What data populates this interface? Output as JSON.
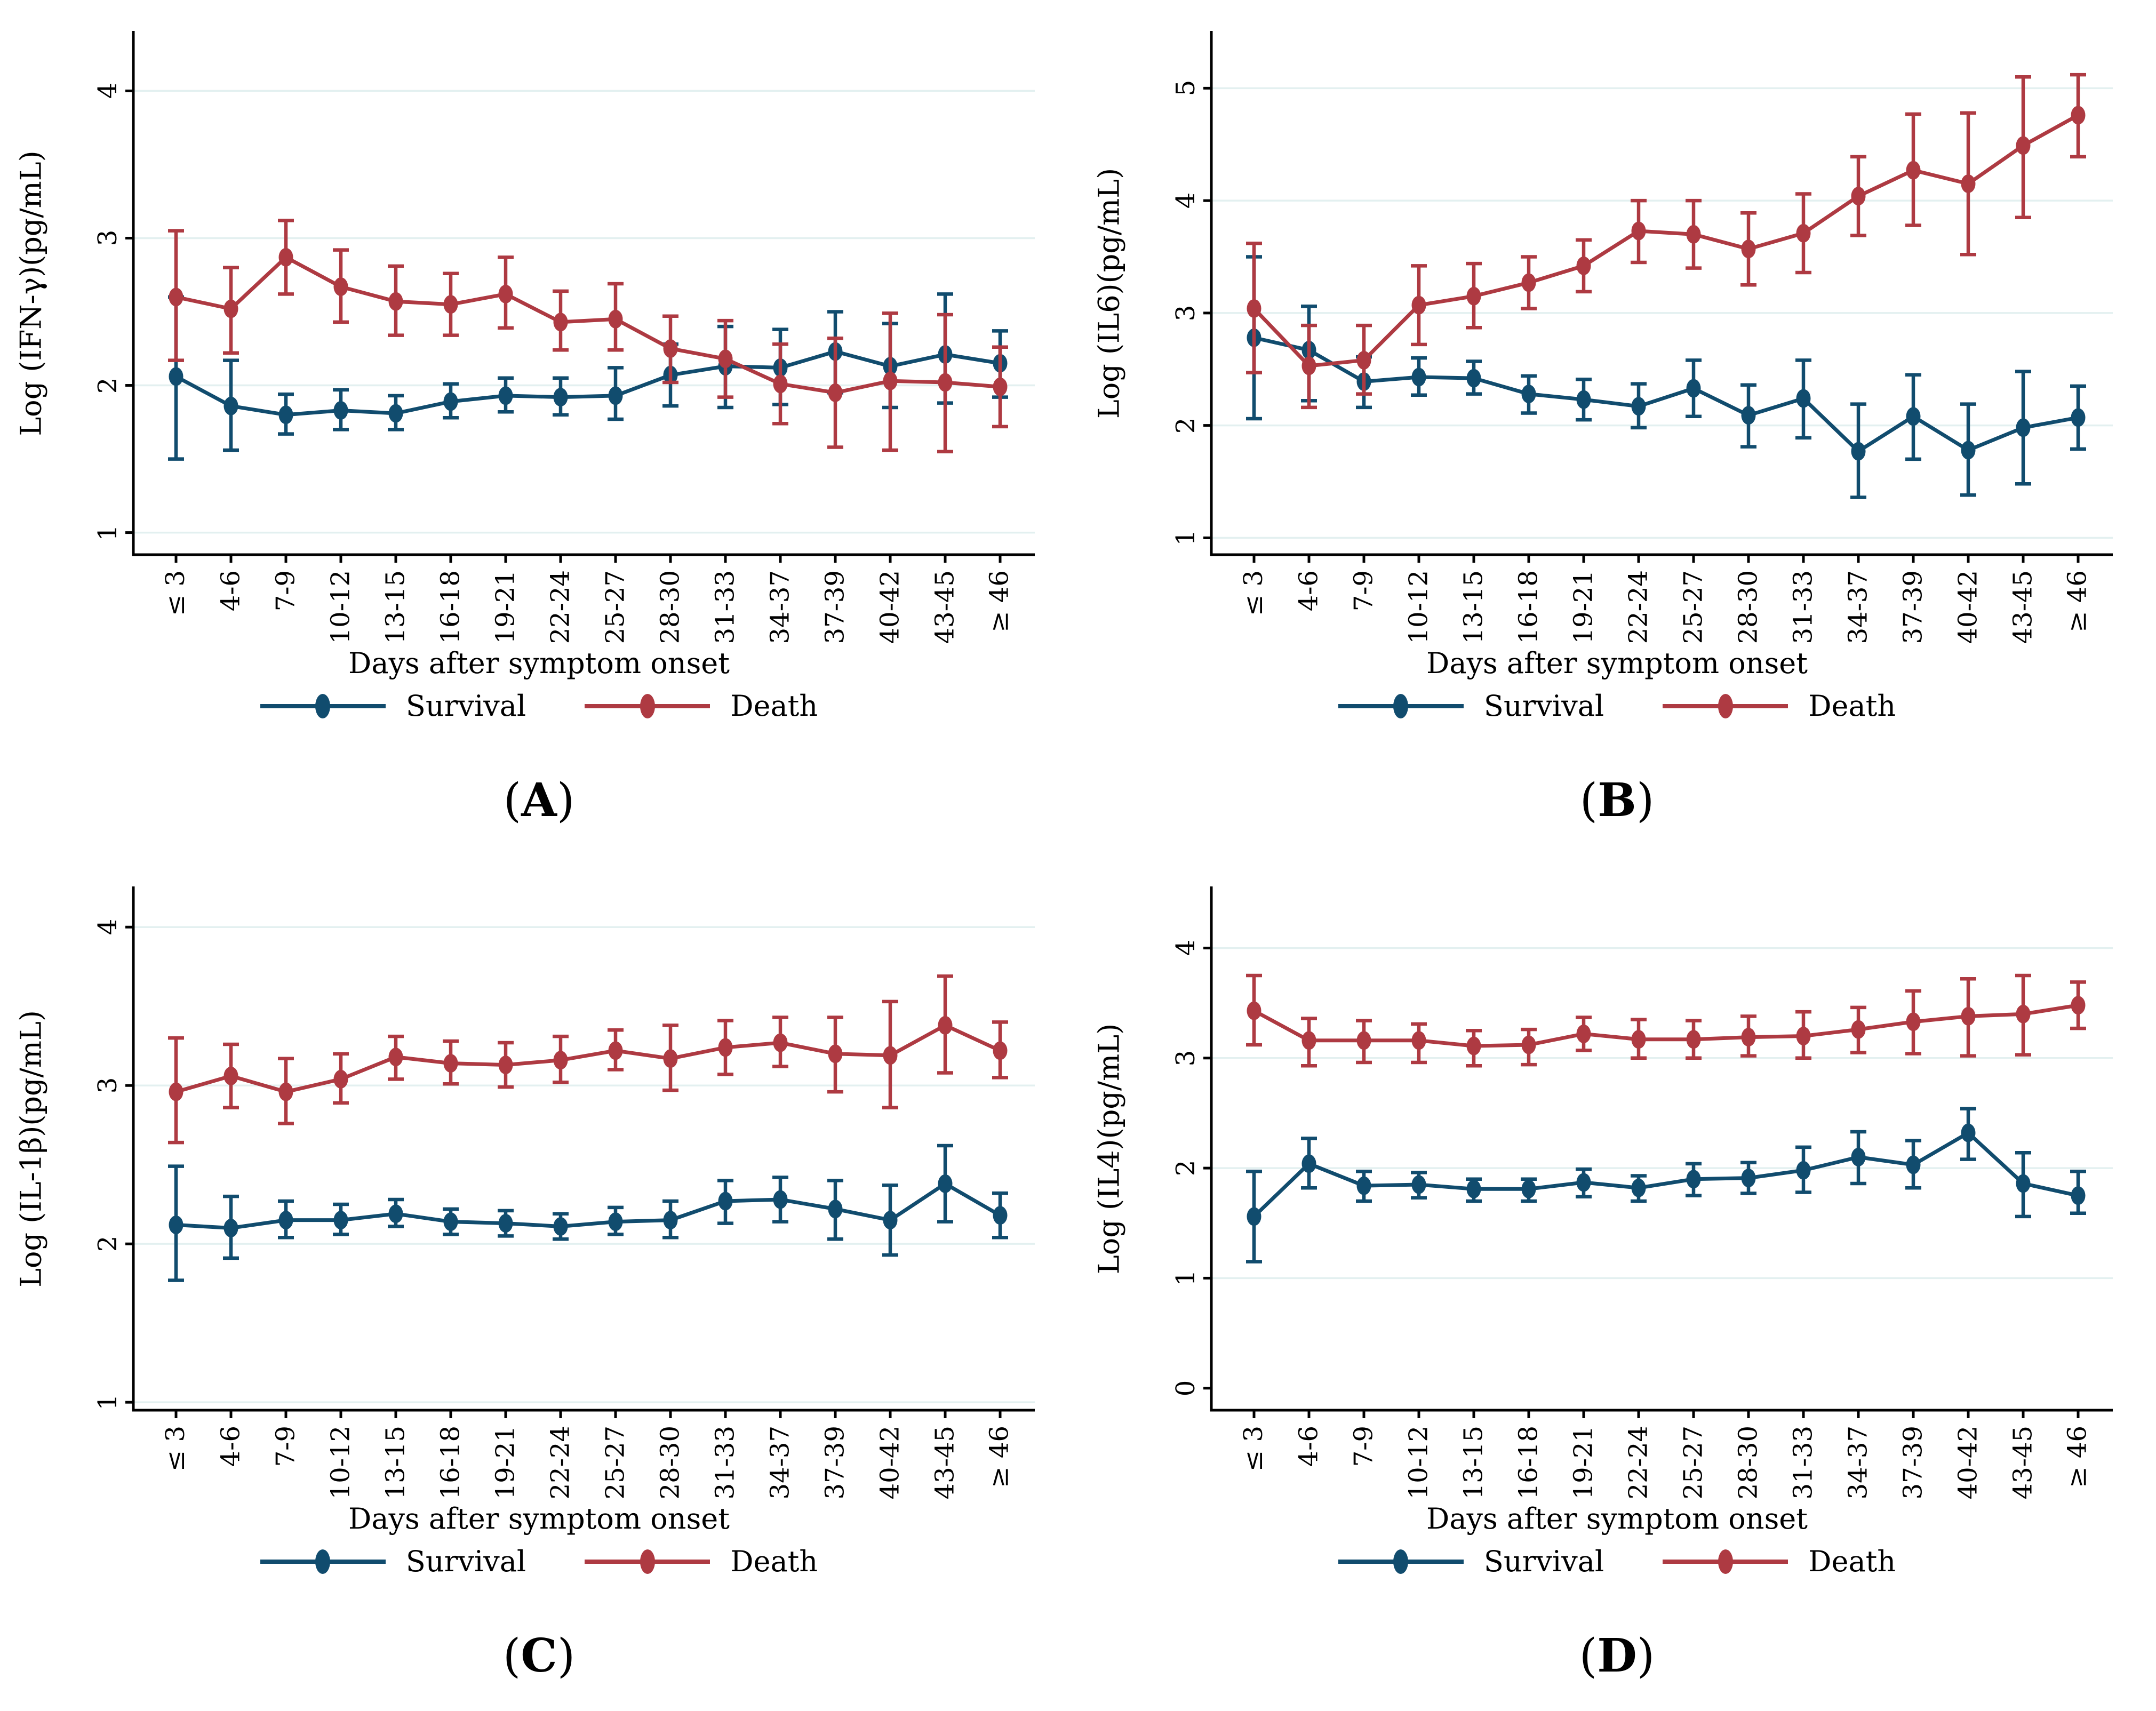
{
  "figure": {
    "x_title": "Days after symptom onset",
    "categories": [
      "≤ 3",
      "4-6",
      "7-9",
      "10-12",
      "13-15",
      "16-18",
      "19-21",
      "22-24",
      "25-27",
      "28-30",
      "31-33",
      "34-37",
      "37-39",
      "40-42",
      "43-45",
      "≥ 46"
    ],
    "legend": [
      {
        "label": "Survival",
        "color": "#114c6e"
      },
      {
        "label": "Death",
        "color": "#ae3a42"
      }
    ],
    "colors": {
      "survival": "#114c6e",
      "death": "#ae3a42",
      "gridline": "#e3f0f0",
      "axis": "#000000",
      "background": "#ffffff"
    }
  },
  "chart_data": [
    {
      "panel": "A",
      "caption": "(A)",
      "letter": "A",
      "type": "line",
      "xlabel": "Days after symptom onset",
      "ylabel": "Log (IFN-γ)(pg/mL)",
      "ylim": [
        0.85,
        4.4
      ],
      "yticks": [
        1,
        2,
        3,
        4
      ],
      "grid_ticks": [
        1,
        2,
        3,
        4
      ],
      "legend_position": "bottom",
      "categories": [
        "≤ 3",
        "4-6",
        "7-9",
        "10-12",
        "13-15",
        "16-18",
        "19-21",
        "22-24",
        "25-27",
        "28-30",
        "31-33",
        "34-37",
        "37-39",
        "40-42",
        "43-45",
        "≥ 46"
      ],
      "series": [
        {
          "name": "Survival",
          "color": "#114c6e",
          "values": [
            2.06,
            1.86,
            1.8,
            1.83,
            1.81,
            1.89,
            1.93,
            1.92,
            1.93,
            2.07,
            2.13,
            2.12,
            2.23,
            2.13,
            2.21,
            2.15
          ],
          "ci_low": [
            1.5,
            1.56,
            1.67,
            1.7,
            1.7,
            1.78,
            1.82,
            1.8,
            1.77,
            1.86,
            1.85,
            1.87,
            1.95,
            1.85,
            1.88,
            1.92
          ],
          "ci_high": [
            2.6,
            2.17,
            1.94,
            1.97,
            1.93,
            2.01,
            2.05,
            2.05,
            2.12,
            2.28,
            2.4,
            2.38,
            2.5,
            2.42,
            2.62,
            2.37
          ]
        },
        {
          "name": "Death",
          "color": "#ae3a42",
          "values": [
            2.6,
            2.52,
            2.87,
            2.67,
            2.57,
            2.55,
            2.62,
            2.43,
            2.45,
            2.25,
            2.18,
            2.01,
            1.95,
            2.03,
            2.02,
            1.99
          ],
          "ci_low": [
            2.17,
            2.22,
            2.62,
            2.43,
            2.34,
            2.34,
            2.39,
            2.24,
            2.24,
            2.02,
            1.92,
            1.74,
            1.58,
            1.56,
            1.55,
            1.72
          ],
          "ci_high": [
            3.05,
            2.8,
            3.12,
            2.92,
            2.81,
            2.76,
            2.87,
            2.64,
            2.69,
            2.47,
            2.44,
            2.28,
            2.32,
            2.49,
            2.48,
            2.26
          ]
        }
      ]
    },
    {
      "panel": "B",
      "caption": "(B)",
      "letter": "B",
      "type": "line",
      "xlabel": "Days after symptom onset",
      "ylabel": "Log (IL6)(pg/mL)",
      "ylim": [
        0.85,
        5.5
      ],
      "yticks": [
        1,
        2,
        3,
        4,
        5
      ],
      "grid_ticks": [
        1,
        2,
        3,
        4,
        5
      ],
      "legend_position": "bottom",
      "categories": [
        "≤ 3",
        "4-6",
        "7-9",
        "10-12",
        "13-15",
        "16-18",
        "19-21",
        "22-24",
        "25-27",
        "28-30",
        "31-33",
        "34-37",
        "37-39",
        "40-42",
        "43-45",
        "≥ 46"
      ],
      "series": [
        {
          "name": "Survival",
          "color": "#114c6e",
          "values": [
            2.78,
            2.67,
            2.39,
            2.43,
            2.42,
            2.28,
            2.23,
            2.17,
            2.33,
            2.09,
            2.24,
            1.77,
            2.08,
            1.78,
            1.98,
            2.07
          ],
          "ci_low": [
            2.06,
            2.22,
            2.16,
            2.27,
            2.28,
            2.11,
            2.05,
            1.98,
            2.08,
            1.81,
            1.89,
            1.36,
            1.7,
            1.38,
            1.48,
            1.79
          ],
          "ci_high": [
            3.5,
            3.06,
            2.61,
            2.6,
            2.57,
            2.44,
            2.41,
            2.37,
            2.58,
            2.36,
            2.58,
            2.19,
            2.45,
            2.19,
            2.48,
            2.35
          ]
        },
        {
          "name": "Death",
          "color": "#ae3a42",
          "values": [
            3.04,
            2.53,
            2.58,
            3.07,
            3.15,
            3.27,
            3.42,
            3.73,
            3.7,
            3.57,
            3.71,
            4.04,
            4.27,
            4.15,
            4.49,
            4.76
          ],
          "ci_low": [
            2.47,
            2.16,
            2.28,
            2.72,
            2.87,
            3.04,
            3.19,
            3.45,
            3.4,
            3.25,
            3.36,
            3.69,
            3.78,
            3.52,
            3.85,
            4.39
          ],
          "ci_high": [
            3.62,
            2.89,
            2.89,
            3.42,
            3.44,
            3.5,
            3.65,
            4.0,
            4.0,
            3.89,
            4.06,
            4.39,
            4.77,
            4.78,
            5.1,
            5.12
          ]
        }
      ]
    },
    {
      "panel": "C",
      "caption": "(C)",
      "letter": "C",
      "type": "line",
      "xlabel": "Days after symptom onset",
      "ylabel": "Log (IL-1β)(pg/mL)",
      "ylim": [
        0.95,
        4.25
      ],
      "yticks": [
        1,
        2,
        3,
        4
      ],
      "grid_ticks": [
        1,
        2,
        3,
        4
      ],
      "legend_position": "bottom",
      "categories": [
        "≤ 3",
        "4-6",
        "7-9",
        "10-12",
        "13-15",
        "16-18",
        "19-21",
        "22-24",
        "25-27",
        "28-30",
        "31-33",
        "34-37",
        "37-39",
        "40-42",
        "43-45",
        "≥ 46"
      ],
      "series": [
        {
          "name": "Survival",
          "color": "#114c6e",
          "values": [
            2.12,
            2.1,
            2.15,
            2.15,
            2.19,
            2.14,
            2.13,
            2.11,
            2.14,
            2.15,
            2.27,
            2.28,
            2.22,
            2.15,
            2.38,
            2.18
          ],
          "ci_low": [
            1.77,
            1.91,
            2.04,
            2.06,
            2.11,
            2.06,
            2.05,
            2.03,
            2.06,
            2.04,
            2.13,
            2.14,
            2.03,
            1.93,
            2.14,
            2.04
          ],
          "ci_high": [
            2.49,
            2.3,
            2.27,
            2.25,
            2.28,
            2.22,
            2.21,
            2.19,
            2.23,
            2.27,
            2.4,
            2.42,
            2.4,
            2.37,
            2.62,
            2.32
          ]
        },
        {
          "name": "Death",
          "color": "#ae3a42",
          "values": [
            2.96,
            3.06,
            2.96,
            3.04,
            3.18,
            3.14,
            3.13,
            3.16,
            3.22,
            3.17,
            3.24,
            3.27,
            3.2,
            3.19,
            3.38,
            3.22
          ],
          "ci_low": [
            2.64,
            2.86,
            2.76,
            2.89,
            3.04,
            3.01,
            2.99,
            3.02,
            3.1,
            2.97,
            3.07,
            3.12,
            2.96,
            2.86,
            3.08,
            3.05
          ],
          "ci_high": [
            3.3,
            3.26,
            3.17,
            3.2,
            3.31,
            3.28,
            3.27,
            3.31,
            3.35,
            3.38,
            3.41,
            3.43,
            3.43,
            3.53,
            3.69,
            3.4
          ]
        }
      ]
    },
    {
      "panel": "D",
      "caption": "(D)",
      "letter": "D",
      "type": "line",
      "xlabel": "Days after symptom onset",
      "ylabel": "Log (IL4)(pg/mL)",
      "ylim": [
        -0.2,
        4.55
      ],
      "yticks": [
        0,
        1,
        2,
        3,
        4
      ],
      "grid_ticks": [
        1,
        2,
        3,
        4
      ],
      "legend_position": "bottom",
      "categories": [
        "≤ 3",
        "4-6",
        "7-9",
        "10-12",
        "13-15",
        "16-18",
        "19-21",
        "22-24",
        "25-27",
        "28-30",
        "31-33",
        "34-37",
        "37-39",
        "40-42",
        "43-45",
        "≥ 46"
      ],
      "series": [
        {
          "name": "Survival",
          "color": "#114c6e",
          "values": [
            1.56,
            2.04,
            1.84,
            1.85,
            1.81,
            1.81,
            1.87,
            1.82,
            1.9,
            1.91,
            1.98,
            2.1,
            2.03,
            2.32,
            1.86,
            1.75
          ],
          "ci_low": [
            1.15,
            1.82,
            1.7,
            1.73,
            1.7,
            1.7,
            1.74,
            1.7,
            1.75,
            1.77,
            1.78,
            1.86,
            1.82,
            2.08,
            1.56,
            1.59
          ],
          "ci_high": [
            1.97,
            2.27,
            1.97,
            1.96,
            1.9,
            1.9,
            1.99,
            1.93,
            2.04,
            2.05,
            2.19,
            2.33,
            2.25,
            2.54,
            2.14,
            1.97
          ]
        },
        {
          "name": "Death",
          "color": "#ae3a42",
          "values": [
            3.43,
            3.16,
            3.16,
            3.16,
            3.11,
            3.12,
            3.22,
            3.17,
            3.17,
            3.19,
            3.2,
            3.26,
            3.33,
            3.38,
            3.4,
            3.48
          ],
          "ci_low": [
            3.12,
            2.93,
            2.96,
            2.96,
            2.93,
            2.94,
            3.07,
            3.0,
            3.0,
            3.02,
            3.0,
            3.05,
            3.04,
            3.02,
            3.03,
            3.27
          ],
          "ci_high": [
            3.75,
            3.36,
            3.34,
            3.31,
            3.25,
            3.26,
            3.37,
            3.35,
            3.34,
            3.38,
            3.42,
            3.46,
            3.61,
            3.72,
            3.75,
            3.69
          ]
        }
      ]
    }
  ]
}
